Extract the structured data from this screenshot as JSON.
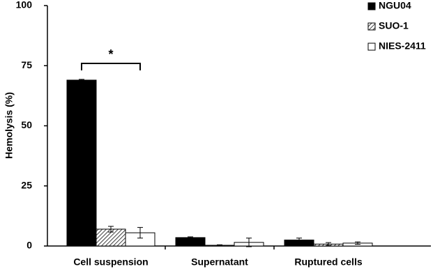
{
  "chart_data": {
    "type": "bar",
    "y_label": "Hemolysis (%)",
    "categories": [
      "Cell suspension",
      "Supernatant",
      "Ruptured cells"
    ],
    "series": [
      {
        "name": "NGU04",
        "color": "#000000",
        "pattern": "solid",
        "values": [
          69,
          3.5,
          2.5
        ],
        "errors": [
          0.3,
          0.3,
          0.8
        ]
      },
      {
        "name": "SUO-1",
        "color": "#000000",
        "pattern": "hatch",
        "values": [
          7,
          0.3,
          0.8
        ],
        "errors": [
          1.2,
          0.2,
          0.6
        ]
      },
      {
        "name": "NIES-2411",
        "color": "#ffffff",
        "pattern": "solid",
        "values": [
          5.5,
          1.5,
          1.2
        ],
        "errors": [
          2.2,
          1.8,
          0.5
        ]
      }
    ],
    "annotation": "*",
    "ylim": [
      0,
      100
    ],
    "yticks": [
      0,
      25,
      50,
      75,
      100
    ],
    "grid": false,
    "legend": "top-right"
  }
}
